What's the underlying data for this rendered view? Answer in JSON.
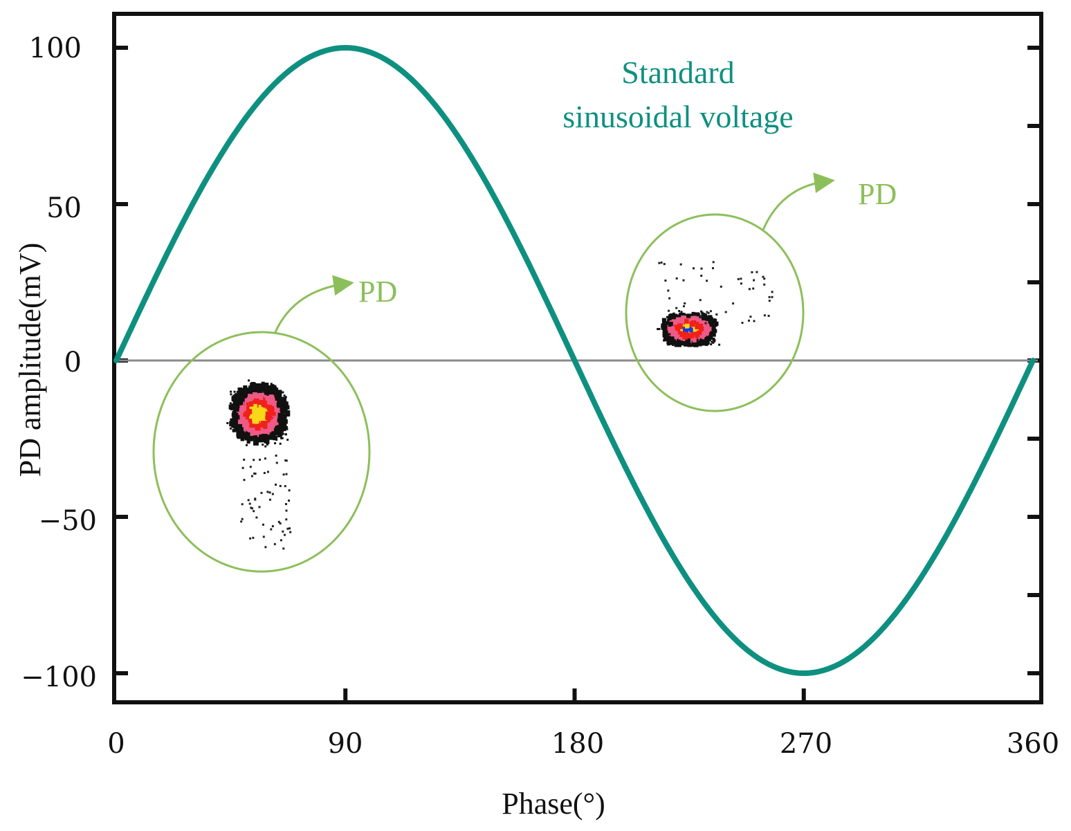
{
  "chart_data": {
    "type": "line",
    "title": "",
    "xlabel": "Phase(°)",
    "ylabel": "PD amplitude(mV)",
    "xlim": [
      0,
      360
    ],
    "ylim": [
      -105,
      108
    ],
    "x_ticks": [
      0,
      90,
      180,
      270,
      360
    ],
    "y_ticks": [
      100,
      50,
      0,
      -50,
      -100
    ],
    "x_tick_labels": [
      "0",
      "90",
      "180",
      "270",
      "360"
    ],
    "y_tick_labels": [
      "100",
      "50",
      "0",
      "−50",
      "−100"
    ],
    "grid": false,
    "zero_line": true,
    "series": [
      {
        "name": "Standard sinusoidal voltage",
        "function": "100*sin(x)",
        "color": "#0e9080",
        "x": [
          0,
          15,
          30,
          45,
          60,
          75,
          90,
          105,
          120,
          135,
          150,
          165,
          180,
          195,
          210,
          225,
          240,
          255,
          270,
          285,
          300,
          315,
          330,
          345,
          360
        ],
        "values": [
          0,
          25.9,
          50,
          70.7,
          86.6,
          96.6,
          100,
          96.6,
          86.6,
          70.7,
          50,
          25.9,
          0,
          -25.9,
          -50,
          -70.7,
          -86.6,
          -96.6,
          -100,
          -96.6,
          -86.6,
          -70.7,
          -50,
          -25.9,
          0
        ]
      }
    ],
    "pd_clusters": [
      {
        "label": "PD",
        "phase_range": [
          30,
          90
        ],
        "amplitude_range": [
          -63,
          -5
        ],
        "center": [
          57,
          -28
        ],
        "dense_center": [
          56,
          -17
        ]
      },
      {
        "label": "PD",
        "phase_range": [
          210,
          260
        ],
        "amplitude_range": [
          5,
          32
        ],
        "center": [
          232,
          15
        ],
        "dense_center": [
          225,
          10
        ]
      }
    ],
    "annotations": [
      {
        "text_line1": "Standard",
        "text_line2": "sinusoidal voltage",
        "color": "#0e9080"
      },
      {
        "text": "PD",
        "color": "#8cbf5a"
      },
      {
        "text": "PD",
        "color": "#8cbf5a"
      }
    ],
    "colors": {
      "curve": "#0e9080",
      "zero_line": "#8a8a8a",
      "annotation_green": "#8cbf5a",
      "frame": "#111111",
      "cloud_palette": [
        "#111111",
        "#ee5a86",
        "#f0201a",
        "#f8d818",
        "#1838e0"
      ]
    }
  }
}
